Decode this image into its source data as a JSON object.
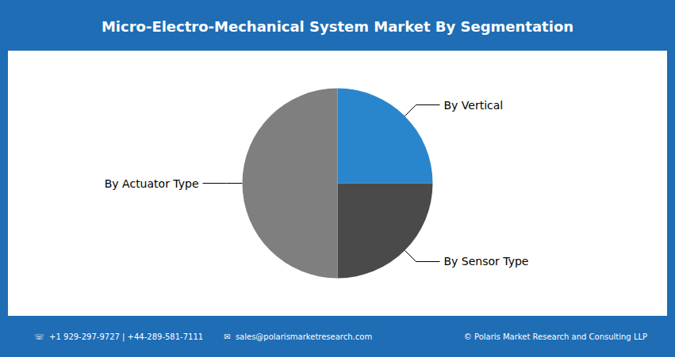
{
  "chart_data": {
    "type": "pie",
    "title": "Micro-Electro-Mechanical System Market By Segmentation",
    "categories": [
      "By Vertical",
      "By Sensor Type",
      "By Actuator Type"
    ],
    "values": [
      25,
      25,
      50
    ],
    "colors": [
      "#2986cc",
      "#4a4a4a",
      "#7f7f7f"
    ],
    "annotations": [
      "☏  +1 929-297-9727 | +44-289-581-7111",
      "✉  sales@polarismarketresearch.com",
      "© Polaris Market Research and Consulting LLP"
    ]
  }
}
